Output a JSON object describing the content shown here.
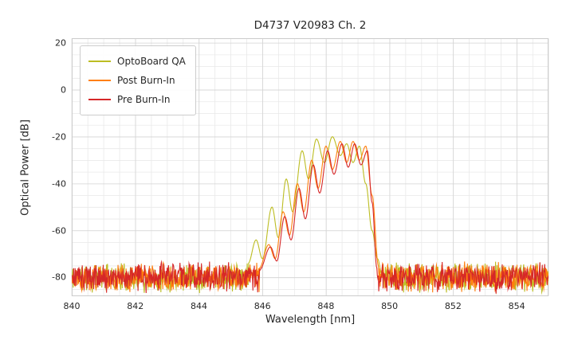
{
  "chart_data": {
    "type": "line",
    "title": "D4737 V20983 Ch. 2",
    "xlabel": "Wavelength [nm]",
    "ylabel": "Optical Power [dB]",
    "xlim": [
      840,
      855
    ],
    "ylim": [
      -88,
      22
    ],
    "xticks": [
      840,
      842,
      844,
      846,
      848,
      850,
      852,
      854
    ],
    "yticks": [
      20,
      0,
      -20,
      -40,
      -60,
      -80
    ],
    "grid": true,
    "minor_grid": true,
    "x_minor_step": 0.5,
    "y_minor_step": 5,
    "legend_position": "upper left",
    "grid_color_major": "#d4d4d4",
    "grid_color_minor": "#e9e9e9",
    "spine_color": "#cccccc",
    "noise": {
      "floor": -80,
      "amplitude": 7,
      "x_step": 0.015
    },
    "series": [
      {
        "name": "OptoBoard QA",
        "color": "#bcbd22",
        "noise_seed": 11,
        "signal_range": [
          845.55,
          849.78
        ],
        "envelope": [
          [
            845.55,
            -74
          ],
          [
            845.8,
            -64
          ],
          [
            846.0,
            -72
          ],
          [
            846.3,
            -50
          ],
          [
            846.5,
            -63
          ],
          [
            846.75,
            -38
          ],
          [
            846.95,
            -52
          ],
          [
            847.25,
            -26
          ],
          [
            847.45,
            -38
          ],
          [
            847.7,
            -21
          ],
          [
            847.95,
            -31
          ],
          [
            848.2,
            -20
          ],
          [
            848.45,
            -28
          ],
          [
            848.65,
            -23
          ],
          [
            848.85,
            -31
          ],
          [
            849.05,
            -24
          ],
          [
            849.25,
            -40
          ],
          [
            849.45,
            -60
          ],
          [
            849.62,
            -72
          ],
          [
            849.78,
            -80
          ]
        ]
      },
      {
        "name": "Post Burn-In",
        "color": "#ff7f0e",
        "noise_seed": 22,
        "signal_range": [
          845.9,
          849.65
        ],
        "envelope": [
          [
            845.9,
            -76
          ],
          [
            846.2,
            -66
          ],
          [
            846.4,
            -72
          ],
          [
            846.65,
            -52
          ],
          [
            846.85,
            -62
          ],
          [
            847.1,
            -40
          ],
          [
            847.3,
            -52
          ],
          [
            847.55,
            -30
          ],
          [
            847.75,
            -42
          ],
          [
            848.0,
            -24
          ],
          [
            848.2,
            -34
          ],
          [
            848.45,
            -22
          ],
          [
            848.65,
            -31
          ],
          [
            848.85,
            -22
          ],
          [
            849.05,
            -30
          ],
          [
            849.25,
            -24
          ],
          [
            849.45,
            -45
          ],
          [
            849.65,
            -75
          ]
        ]
      },
      {
        "name": "Pre Burn-In",
        "color": "#d62728",
        "noise_seed": 33,
        "signal_range": [
          845.9,
          849.6
        ],
        "envelope": [
          [
            845.9,
            -77
          ],
          [
            846.25,
            -67
          ],
          [
            846.45,
            -73
          ],
          [
            846.7,
            -54
          ],
          [
            846.9,
            -64
          ],
          [
            847.15,
            -42
          ],
          [
            847.35,
            -55
          ],
          [
            847.6,
            -32
          ],
          [
            847.8,
            -44
          ],
          [
            848.05,
            -26
          ],
          [
            848.25,
            -36
          ],
          [
            848.5,
            -23
          ],
          [
            848.7,
            -33
          ],
          [
            848.9,
            -23
          ],
          [
            849.1,
            -32
          ],
          [
            849.3,
            -26
          ],
          [
            849.45,
            -48
          ],
          [
            849.6,
            -76
          ]
        ]
      }
    ]
  }
}
